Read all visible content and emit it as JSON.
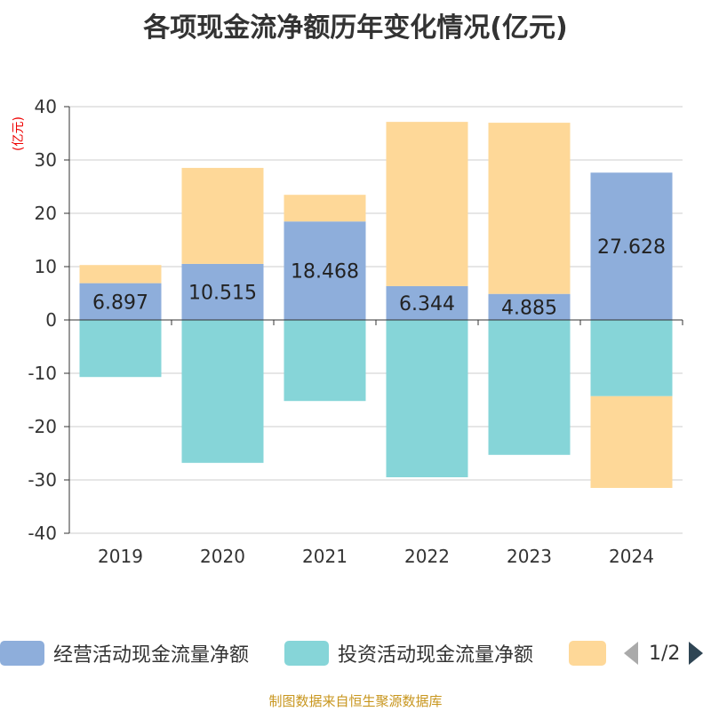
{
  "title": "各项现金流净额历年变化情况(亿元)",
  "source": "制图数据来自恒生聚源数据库",
  "legend": {
    "page": "1/2"
  },
  "chart_data": {
    "type": "bar",
    "stacked": true,
    "title": "各项现金流净额历年变化情况(亿元)",
    "ylabel": "(亿元)",
    "ylim": [
      -40,
      40
    ],
    "yticks": [
      40,
      30,
      20,
      10,
      0,
      -10,
      -20,
      -30,
      -40
    ],
    "grid": true,
    "legend_position": "bottom",
    "categories": [
      "2019",
      "2020",
      "2021",
      "2022",
      "2023",
      "2024"
    ],
    "series": [
      {
        "name": "经营活动现金流量净额",
        "color": "#8eaedb",
        "values": [
          6.897,
          10.515,
          18.468,
          6.344,
          4.885,
          27.628
        ],
        "labels": [
          "6.897",
          "10.515",
          "18.468",
          "6.344",
          "4.885",
          "27.628"
        ]
      },
      {
        "name": "投资活动现金流量净额",
        "color": "#86d5d8",
        "values": [
          -10.7,
          -26.8,
          -15.2,
          -29.5,
          -25.3,
          -14.3
        ]
      },
      {
        "color": "#fed898",
        "values": [
          3.4,
          18.0,
          5.0,
          30.8,
          32.1,
          -17.2
        ]
      }
    ]
  }
}
